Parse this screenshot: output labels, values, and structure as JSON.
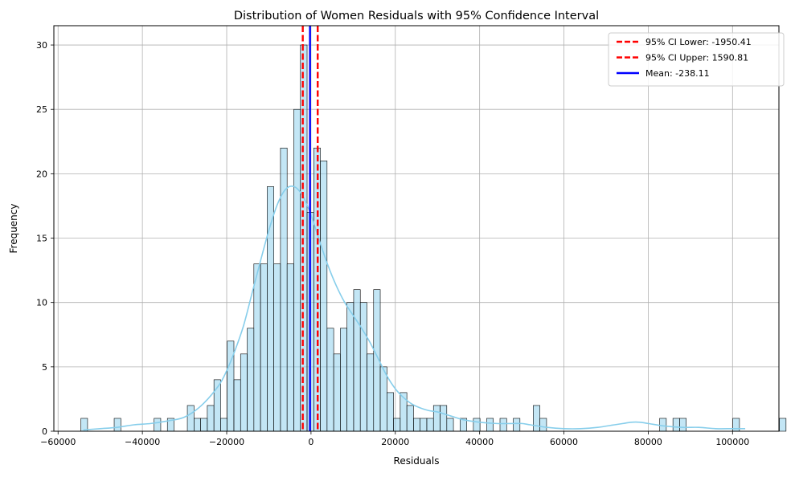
{
  "chart_data": {
    "type": "bar",
    "title": "Distribution of Women Residuals with 95% Confidence Interval",
    "xlabel": "Residuals",
    "ylabel": "Frequency",
    "xlim": [
      -61000,
      111000
    ],
    "ylim": [
      0,
      31.5
    ],
    "grid": true,
    "legend_position": "top-right",
    "xticks": [
      -60000,
      -40000,
      -20000,
      0,
      20000,
      40000,
      60000,
      80000,
      100000
    ],
    "xtick_labels": [
      "−60000",
      "−40000",
      "−20000",
      "0",
      "20000",
      "40000",
      "60000",
      "80000",
      "100000"
    ],
    "yticks": [
      0,
      5,
      10,
      15,
      20,
      25,
      30
    ],
    "ytick_labels": [
      "0",
      "5",
      "10",
      "15",
      "20",
      "25",
      "30"
    ],
    "histogram": {
      "bin_start": -54583,
      "bin_width": 1578,
      "counts": [
        1,
        0,
        0,
        0,
        0,
        1,
        0,
        0,
        0,
        0,
        0,
        1,
        0,
        1,
        0,
        0,
        2,
        1,
        1,
        2,
        4,
        1,
        7,
        4,
        6,
        8,
        13,
        13,
        19,
        13,
        22,
        13,
        25,
        30,
        17,
        22,
        21,
        8,
        6,
        8,
        10,
        11,
        10,
        6,
        11,
        5,
        3,
        1,
        3,
        2,
        1,
        1,
        1,
        2,
        2,
        1,
        0,
        1,
        0,
        1,
        0,
        1,
        0,
        1,
        0,
        1,
        0,
        0,
        2,
        1,
        0,
        0,
        0,
        0,
        0,
        0,
        0,
        0,
        0,
        0,
        0,
        0,
        0,
        0,
        0,
        0,
        0,
        1,
        0,
        1,
        1,
        0,
        0,
        0,
        0,
        0,
        0,
        0,
        1,
        0,
        0,
        0,
        0,
        0,
        0,
        1
      ],
      "fill_color": "#87ceeb",
      "edge_color": "#000000"
    },
    "kde": {
      "color": "#87ceeb",
      "x": [
        -54000,
        -50000,
        -46000,
        -42000,
        -38000,
        -34000,
        -30000,
        -26000,
        -22000,
        -20000,
        -18000,
        -16000,
        -14000,
        -12000,
        -10000,
        -8000,
        -6000,
        -4000,
        -2000,
        0,
        2000,
        4000,
        6000,
        8000,
        10000,
        12000,
        14000,
        16000,
        18000,
        20000,
        22000,
        24000,
        26000,
        28000,
        30000,
        32000,
        34000,
        36000,
        40000,
        44000,
        48000,
        50000,
        52000,
        56000,
        60000,
        64000,
        68000,
        72000,
        74000,
        76000,
        78000,
        80000,
        84000,
        88000,
        92000,
        96000,
        100000,
        103000
      ],
      "y": [
        0.1,
        0.2,
        0.3,
        0.5,
        0.6,
        0.8,
        1.1,
        2.0,
        3.5,
        4.7,
        6.3,
        8.2,
        10.7,
        13.2,
        15.6,
        17.6,
        18.8,
        19.0,
        18.3,
        16.8,
        14.8,
        12.9,
        11.3,
        10.0,
        9.0,
        8.0,
        6.9,
        5.6,
        4.3,
        3.3,
        2.6,
        2.1,
        1.8,
        1.6,
        1.5,
        1.3,
        1.1,
        0.9,
        0.7,
        0.6,
        0.6,
        0.6,
        0.5,
        0.3,
        0.2,
        0.2,
        0.3,
        0.5,
        0.6,
        0.7,
        0.7,
        0.6,
        0.4,
        0.3,
        0.3,
        0.2,
        0.2,
        0.2
      ]
    },
    "lines": [
      {
        "name": "95% CI Lower: -1950.41",
        "x": -1950.41,
        "color": "#ff0000",
        "style": "dashed"
      },
      {
        "name": "95% CI Upper: 1590.81",
        "x": 1590.81,
        "color": "#ff0000",
        "style": "dashed"
      },
      {
        "name": "Mean: -238.11",
        "x": -238.11,
        "color": "#0000ff",
        "style": "solid"
      }
    ]
  }
}
